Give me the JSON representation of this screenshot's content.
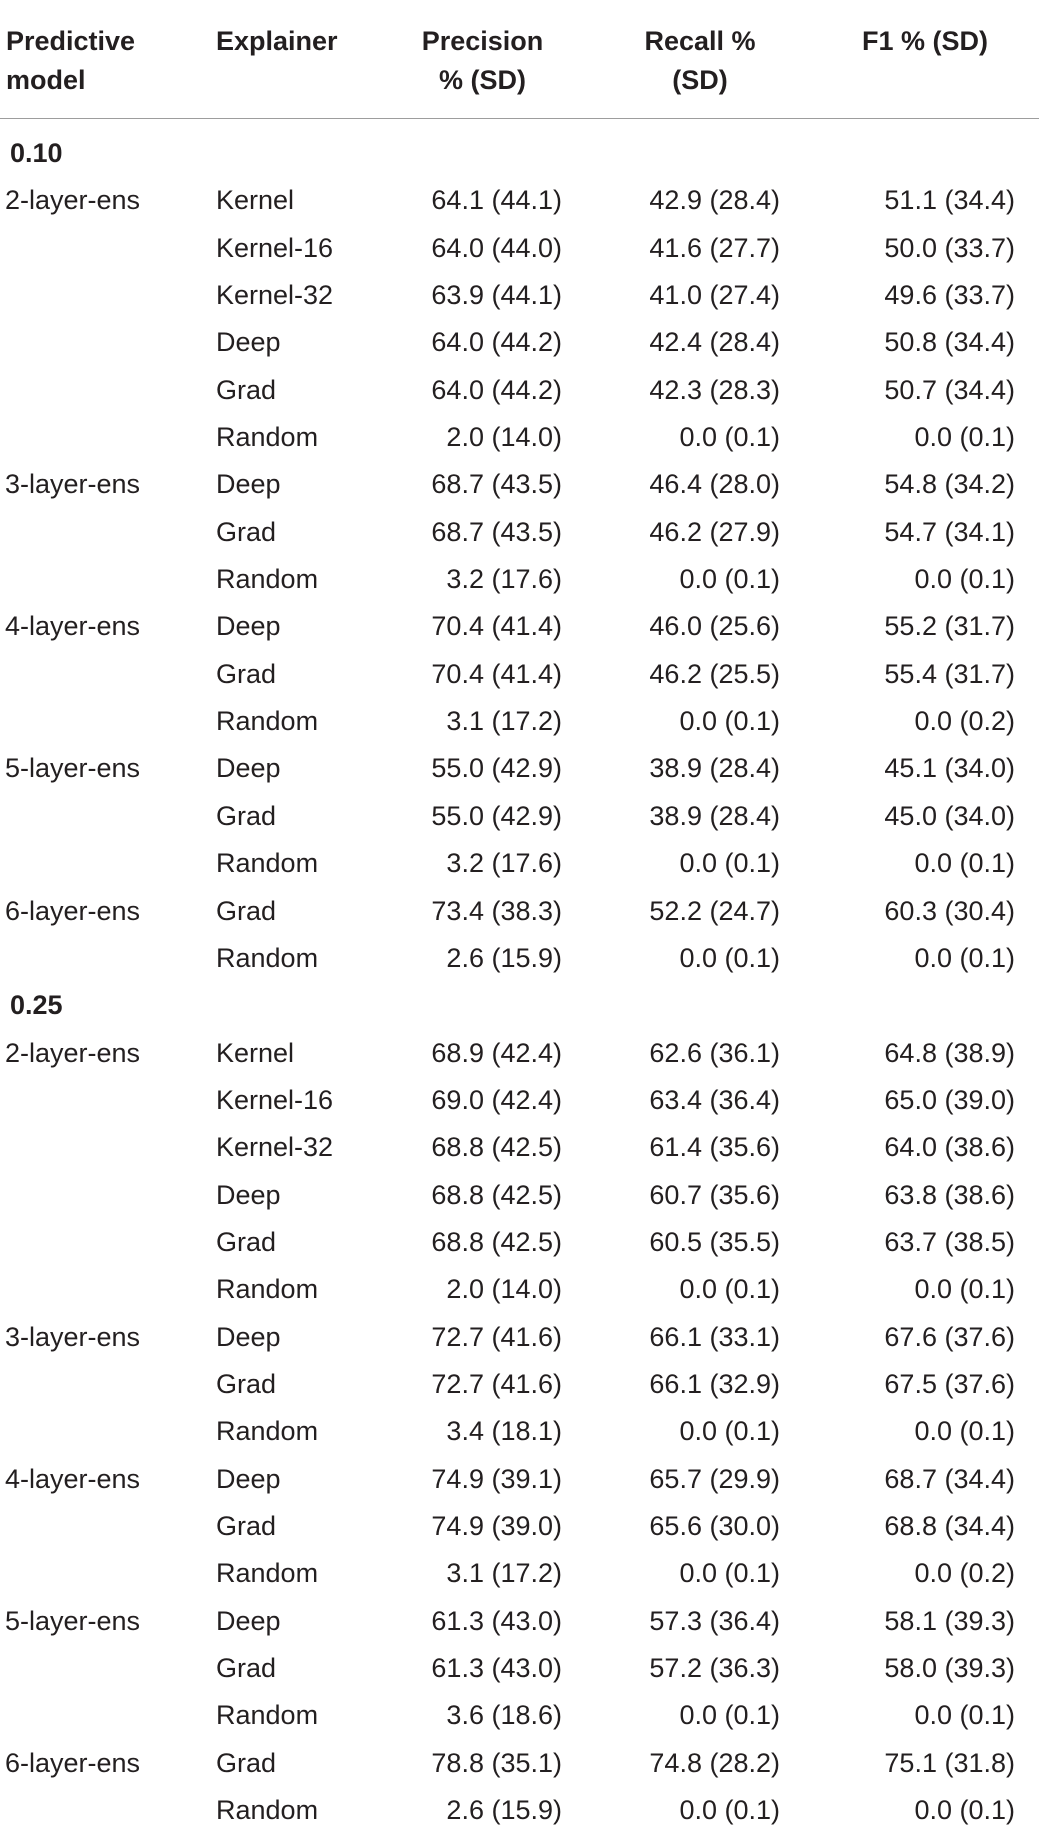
{
  "header": {
    "model": [
      "Predictive",
      "model"
    ],
    "explainer": "Explainer",
    "precision": [
      "Precision",
      "% (SD)"
    ],
    "recall": [
      "Recall %",
      "(SD)"
    ],
    "f1": "F1 % (SD)"
  },
  "rows": [
    {
      "section": "0.10"
    },
    {
      "model": "2-layer-ens",
      "explainer": "Kernel",
      "precision": "64.1 (44.1)",
      "recall": "42.9 (28.4)",
      "f1": "51.1 (34.4)"
    },
    {
      "model": "",
      "explainer": "Kernel-16",
      "precision": "64.0 (44.0)",
      "recall": "41.6 (27.7)",
      "f1": "50.0 (33.7)"
    },
    {
      "model": "",
      "explainer": "Kernel-32",
      "precision": "63.9 (44.1)",
      "recall": "41.0 (27.4)",
      "f1": "49.6 (33.7)"
    },
    {
      "model": "",
      "explainer": "Deep",
      "precision": "64.0 (44.2)",
      "recall": "42.4 (28.4)",
      "f1": "50.8 (34.4)"
    },
    {
      "model": "",
      "explainer": "Grad",
      "precision": "64.0 (44.2)",
      "recall": "42.3 (28.3)",
      "f1": "50.7 (34.4)"
    },
    {
      "model": "",
      "explainer": "Random",
      "precision": "2.0 (14.0)",
      "recall": "0.0 (0.1)",
      "f1": "0.0 (0.1)"
    },
    {
      "model": "3-layer-ens",
      "explainer": "Deep",
      "precision": "68.7 (43.5)",
      "recall": "46.4 (28.0)",
      "f1": "54.8 (34.2)"
    },
    {
      "model": "",
      "explainer": "Grad",
      "precision": "68.7 (43.5)",
      "recall": "46.2 (27.9)",
      "f1": "54.7 (34.1)"
    },
    {
      "model": "",
      "explainer": "Random",
      "precision": "3.2 (17.6)",
      "recall": "0.0 (0.1)",
      "f1": "0.0 (0.1)"
    },
    {
      "model": "4-layer-ens",
      "explainer": "Deep",
      "precision": "70.4 (41.4)",
      "recall": "46.0 (25.6)",
      "f1": "55.2 (31.7)"
    },
    {
      "model": "",
      "explainer": "Grad",
      "precision": "70.4 (41.4)",
      "recall": "46.2 (25.5)",
      "f1": "55.4 (31.7)"
    },
    {
      "model": "",
      "explainer": "Random",
      "precision": "3.1 (17.2)",
      "recall": "0.0 (0.1)",
      "f1": "0.0 (0.2)"
    },
    {
      "model": "5-layer-ens",
      "explainer": "Deep",
      "precision": "55.0 (42.9)",
      "recall": "38.9 (28.4)",
      "f1": "45.1 (34.0)"
    },
    {
      "model": "",
      "explainer": "Grad",
      "precision": "55.0 (42.9)",
      "recall": "38.9 (28.4)",
      "f1": "45.0 (34.0)"
    },
    {
      "model": "",
      "explainer": "Random",
      "precision": "3.2 (17.6)",
      "recall": "0.0 (0.1)",
      "f1": "0.0 (0.1)"
    },
    {
      "model": "6-layer-ens",
      "explainer": "Grad",
      "precision": "73.4 (38.3)",
      "recall": "52.2 (24.7)",
      "f1": "60.3 (30.4)"
    },
    {
      "model": "",
      "explainer": "Random",
      "precision": "2.6 (15.9)",
      "recall": "0.0 (0.1)",
      "f1": "0.0 (0.1)"
    },
    {
      "section": "0.25"
    },
    {
      "model": "2-layer-ens",
      "explainer": "Kernel",
      "precision": "68.9 (42.4)",
      "recall": "62.6 (36.1)",
      "f1": "64.8 (38.9)"
    },
    {
      "model": "",
      "explainer": "Kernel-16",
      "precision": "69.0 (42.4)",
      "recall": "63.4 (36.4)",
      "f1": "65.0 (39.0)"
    },
    {
      "model": "",
      "explainer": "Kernel-32",
      "precision": "68.8 (42.5)",
      "recall": "61.4 (35.6)",
      "f1": "64.0 (38.6)"
    },
    {
      "model": "",
      "explainer": "Deep",
      "precision": "68.8 (42.5)",
      "recall": "60.7 (35.6)",
      "f1": "63.8 (38.6)"
    },
    {
      "model": "",
      "explainer": "Grad",
      "precision": "68.8 (42.5)",
      "recall": "60.5 (35.5)",
      "f1": "63.7 (38.5)"
    },
    {
      "model": "",
      "explainer": "Random",
      "precision": "2.0 (14.0)",
      "recall": "0.0 (0.1)",
      "f1": "0.0 (0.1)"
    },
    {
      "model": "3-layer-ens",
      "explainer": "Deep",
      "precision": "72.7 (41.6)",
      "recall": "66.1 (33.1)",
      "f1": "67.6 (37.6)"
    },
    {
      "model": "",
      "explainer": "Grad",
      "precision": "72.7 (41.6)",
      "recall": "66.1 (32.9)",
      "f1": "67.5 (37.6)"
    },
    {
      "model": "",
      "explainer": "Random",
      "precision": "3.4 (18.1)",
      "recall": "0.0 (0.1)",
      "f1": "0.0 (0.1)"
    },
    {
      "model": "4-layer-ens",
      "explainer": "Deep",
      "precision": "74.9 (39.1)",
      "recall": "65.7 (29.9)",
      "f1": "68.7 (34.4)"
    },
    {
      "model": "",
      "explainer": "Grad",
      "precision": "74.9 (39.0)",
      "recall": "65.6 (30.0)",
      "f1": "68.8 (34.4)"
    },
    {
      "model": "",
      "explainer": "Random",
      "precision": "3.1 (17.2)",
      "recall": "0.0 (0.1)",
      "f1": "0.0 (0.2)"
    },
    {
      "model": "5-layer-ens",
      "explainer": "Deep",
      "precision": "61.3 (43.0)",
      "recall": "57.3 (36.4)",
      "f1": "58.1 (39.3)"
    },
    {
      "model": "",
      "explainer": "Grad",
      "precision": "61.3 (43.0)",
      "recall": "57.2 (36.3)",
      "f1": "58.0 (39.3)"
    },
    {
      "model": "",
      "explainer": "Random",
      "precision": "3.6 (18.6)",
      "recall": "0.0 (0.1)",
      "f1": "0.0 (0.1)"
    },
    {
      "model": "6-layer-ens",
      "explainer": "Grad",
      "precision": "78.8 (35.1)",
      "recall": "74.8 (28.2)",
      "f1": "75.1 (31.8)"
    },
    {
      "model": "",
      "explainer": "Random",
      "precision": "2.6 (15.9)",
      "recall": "0.0 (0.1)",
      "f1": "0.0 (0.1)"
    }
  ]
}
